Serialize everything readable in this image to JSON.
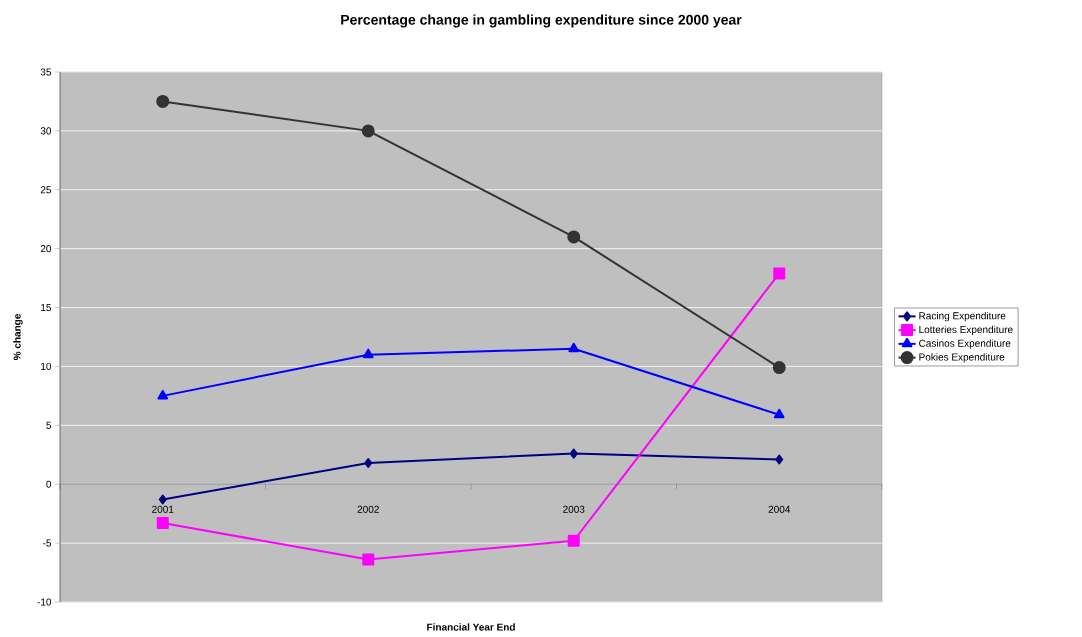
{
  "chart_data": {
    "type": "line",
    "title": "Percentage change in gambling expenditure since 2000 year",
    "xlabel": "Financial Year End",
    "ylabel": "% change",
    "categories": [
      "2001",
      "2002",
      "2003",
      "2004"
    ],
    "series": [
      {
        "name": "Racing Expenditure",
        "color": "#000080",
        "marker": "diamond",
        "values": [
          -1.3,
          1.8,
          2.6,
          2.1
        ]
      },
      {
        "name": "Lotteries Expenditure",
        "color": "#ff00ff",
        "marker": "square",
        "values": [
          -3.3,
          -6.4,
          -4.8,
          17.9
        ]
      },
      {
        "name": "Casinos Expenditure",
        "color": "#0000ff",
        "marker": "triangle",
        "values": [
          7.5,
          11.0,
          11.5,
          5.9
        ]
      },
      {
        "name": "Pokies Expenditure",
        "color": "#333333",
        "marker": "circle",
        "values": [
          32.5,
          30.0,
          21.0,
          9.9
        ]
      }
    ],
    "ylim": [
      -10,
      35
    ],
    "yticks": [
      -10,
      -5,
      0,
      5,
      10,
      15,
      20,
      25,
      30,
      35
    ],
    "grid": "y",
    "legend": "right",
    "line_style": "solid"
  }
}
